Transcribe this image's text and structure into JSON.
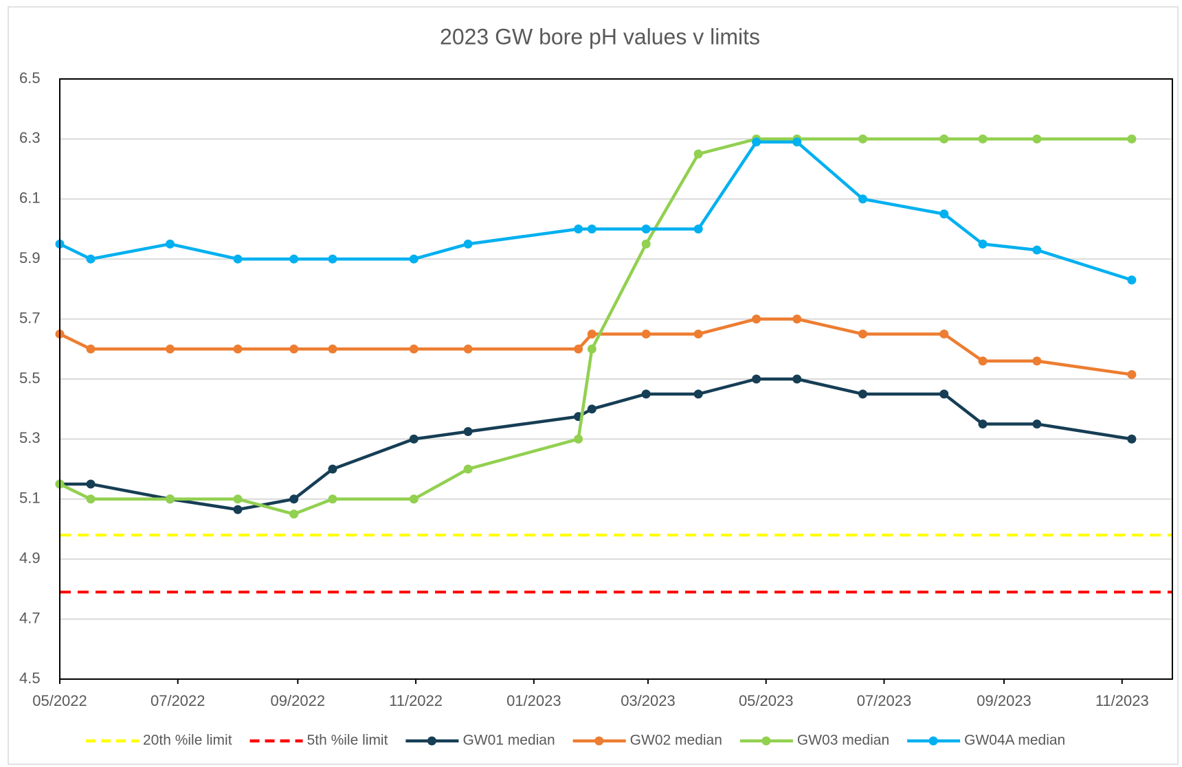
{
  "chart_data": {
    "type": "line",
    "title": "2023 GW bore pH values v limits",
    "x": [
      44682,
      44698,
      44739,
      44774,
      44803,
      44823,
      44865,
      44893,
      44950,
      44957,
      44985,
      45012,
      45042,
      45063,
      45097,
      45139,
      45159,
      45187,
      45236
    ],
    "xlim": [
      44682,
      45257
    ],
    "xticks": [
      {
        "value": 44682,
        "label": "05/2022"
      },
      {
        "value": 44743,
        "label": "07/2022"
      },
      {
        "value": 44805,
        "label": "09/2022"
      },
      {
        "value": 44866,
        "label": "11/2022"
      },
      {
        "value": 44927,
        "label": "01/2023"
      },
      {
        "value": 44986,
        "label": "03/2023"
      },
      {
        "value": 45047,
        "label": "05/2023"
      },
      {
        "value": 45108,
        "label": "07/2023"
      },
      {
        "value": 45170,
        "label": "09/2023"
      },
      {
        "value": 45231,
        "label": "11/2023"
      }
    ],
    "ylim": [
      4.5,
      6.5
    ],
    "yticks": [
      4.5,
      4.7,
      4.9,
      5.1,
      5.3,
      5.5,
      5.7,
      5.9,
      6.1,
      6.3,
      6.5
    ],
    "grid": true,
    "legend": "bottom",
    "reference_lines": [
      {
        "name": "20th %ile limit",
        "color": "#ffff00",
        "value": 4.98
      },
      {
        "name": "5th %ile limit",
        "color": "#ff0000",
        "value": 4.79
      }
    ],
    "series": [
      {
        "name": "GW01 median",
        "color": "#163e55",
        "values": [
          5.15,
          5.15,
          5.1,
          5.065,
          5.1,
          5.2,
          5.3,
          5.325,
          5.375,
          5.4,
          5.45,
          5.45,
          5.5,
          5.5,
          5.45,
          5.45,
          5.35,
          5.35,
          5.3
        ]
      },
      {
        "name": "GW02 median",
        "color": "#ed7d31",
        "values": [
          5.65,
          5.6,
          5.6,
          5.6,
          5.6,
          5.6,
          5.6,
          5.6,
          5.6,
          5.65,
          5.65,
          5.65,
          5.7,
          5.7,
          5.65,
          5.65,
          5.56,
          5.56,
          5.515
        ]
      },
      {
        "name": "GW03 median",
        "color": "#92d050",
        "values": [
          5.15,
          5.1,
          5.1,
          5.1,
          5.05,
          5.1,
          5.1,
          5.2,
          5.3,
          5.6,
          5.95,
          6.25,
          6.3,
          6.3,
          6.3,
          6.3,
          6.3,
          6.3,
          6.3
        ]
      },
      {
        "name": "GW04A median",
        "color": "#00b0f0",
        "values": [
          5.95,
          5.9,
          5.95,
          5.9,
          5.9,
          5.9,
          5.9,
          5.95,
          6.0,
          6.0,
          6.0,
          6.0,
          6.29,
          6.29,
          6.1,
          6.05,
          5.95,
          5.93,
          5.83
        ]
      }
    ]
  }
}
